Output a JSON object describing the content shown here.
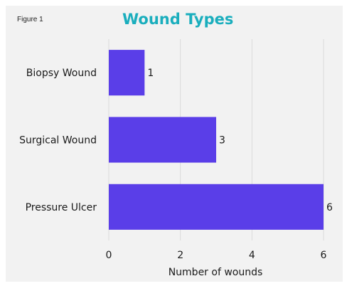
{
  "figure_label": "Figure 1",
  "chart_data": {
    "type": "bar",
    "orientation": "horizontal",
    "title": "Wound Types",
    "categories": [
      "Biopsy Wound",
      "Surgical Wound",
      "Pressure Ulcer"
    ],
    "values": [
      1,
      3,
      6
    ],
    "data_labels": [
      "1",
      "3",
      "6"
    ],
    "xlabel": "Number of wounds",
    "ylabel": "",
    "xlim": [
      0,
      6
    ],
    "xticks": [
      "0",
      "2",
      "4",
      "6"
    ],
    "grid": true,
    "legend": false,
    "colors": {
      "bar": "#5a3ee8",
      "title": "#1aaebd",
      "grid": "#d9d9d9",
      "background": "#f2f2f2"
    }
  }
}
